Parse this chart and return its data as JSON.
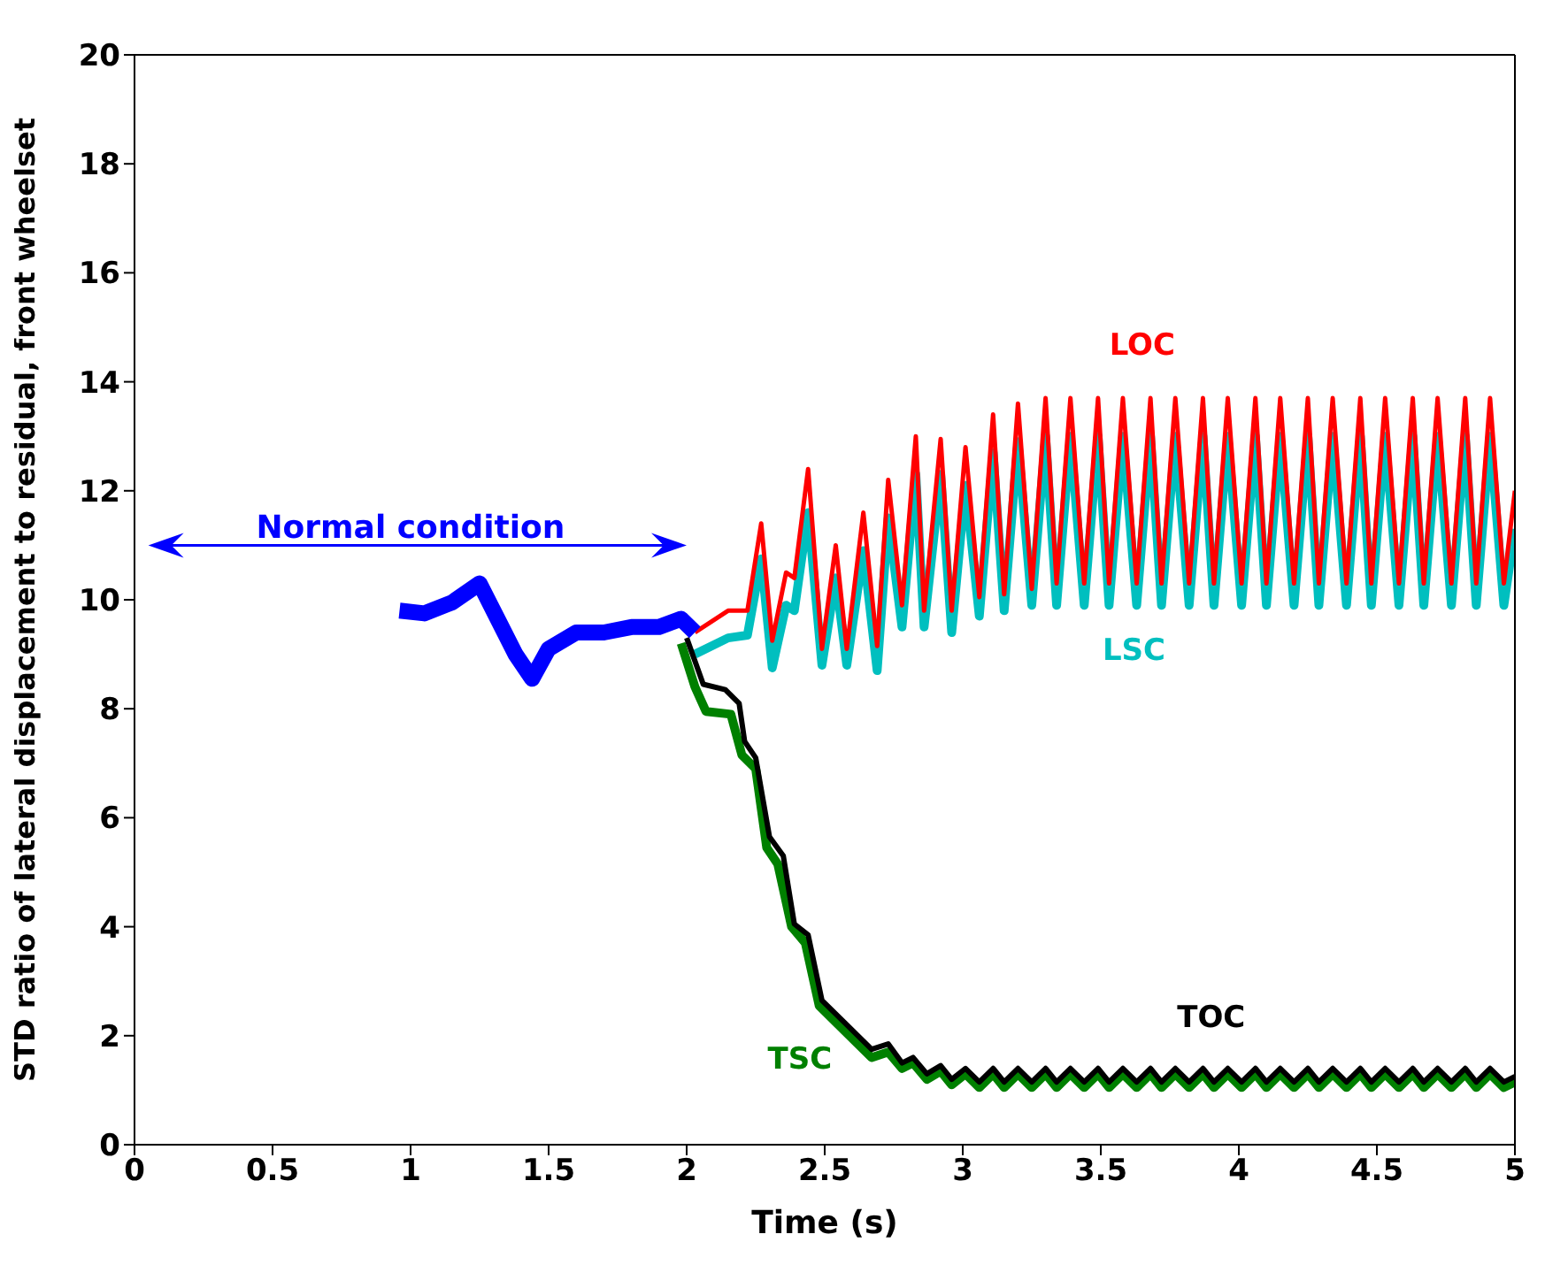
{
  "chart_data": {
    "type": "line",
    "xlabel": "Time (s)",
    "ylabel": "STD ratio of lateral displacement to residual, front wheelset",
    "xlim": [
      0,
      5
    ],
    "ylim": [
      0,
      20
    ],
    "xticks": [
      0,
      0.5,
      1,
      1.5,
      2,
      2.5,
      3,
      3.5,
      4,
      4.5,
      5
    ],
    "yticks": [
      0,
      2,
      4,
      6,
      8,
      10,
      12,
      14,
      16,
      18,
      20
    ],
    "grid": false,
    "marker": "none",
    "line_style": "solid",
    "annotations": [
      "Normal condition"
    ],
    "series": [
      {
        "name": "LSC",
        "color": "#00bfbf",
        "x": [
          2.03,
          2.15,
          2.22,
          2.27,
          2.31,
          2.36,
          2.39,
          2.44,
          2.49,
          2.54,
          2.58,
          2.64,
          2.69,
          2.73,
          2.78,
          2.83,
          2.86,
          2.92,
          2.96,
          3.01,
          3.06,
          3.11,
          3.15,
          3.2,
          3.25,
          3.3,
          3.34,
          3.39,
          3.44,
          3.49,
          3.53,
          3.58,
          3.63,
          3.68,
          3.72,
          3.77,
          3.82,
          3.87,
          3.91,
          3.96,
          4.01,
          4.06,
          4.1,
          4.15,
          4.2,
          4.25,
          4.29,
          4.34,
          4.39,
          4.44,
          4.48,
          4.53,
          4.58,
          4.63,
          4.67,
          4.72,
          4.77,
          4.82,
          4.86,
          4.91,
          4.96,
          5.0
        ],
        "values": [
          9.0,
          9.3,
          9.35,
          10.75,
          8.75,
          9.9,
          9.8,
          11.6,
          8.8,
          10.4,
          8.8,
          10.9,
          8.7,
          11.5,
          9.5,
          12.3,
          9.5,
          12.3,
          9.4,
          12.1,
          9.7,
          12.7,
          9.8,
          12.9,
          9.9,
          13.0,
          9.9,
          13.0,
          9.9,
          13.0,
          9.9,
          13.0,
          9.9,
          13.0,
          9.9,
          13.0,
          9.9,
          13.0,
          9.9,
          13.0,
          9.9,
          13.0,
          9.9,
          13.0,
          9.9,
          13.0,
          9.9,
          13.0,
          9.9,
          13.0,
          9.9,
          13.0,
          9.9,
          13.0,
          9.9,
          13.0,
          9.9,
          13.0,
          9.9,
          13.0,
          9.9,
          11.3
        ]
      },
      {
        "name": "LOC",
        "color": "#ff0000",
        "x": [
          2.03,
          2.15,
          2.22,
          2.27,
          2.31,
          2.36,
          2.39,
          2.44,
          2.49,
          2.54,
          2.58,
          2.64,
          2.69,
          2.73,
          2.78,
          2.83,
          2.86,
          2.92,
          2.96,
          3.01,
          3.06,
          3.11,
          3.15,
          3.2,
          3.25,
          3.3,
          3.34,
          3.39,
          3.44,
          3.49,
          3.53,
          3.58,
          3.63,
          3.68,
          3.72,
          3.77,
          3.82,
          3.87,
          3.91,
          3.96,
          4.01,
          4.06,
          4.1,
          4.15,
          4.2,
          4.25,
          4.29,
          4.34,
          4.39,
          4.44,
          4.48,
          4.53,
          4.58,
          4.63,
          4.67,
          4.72,
          4.77,
          4.82,
          4.86,
          4.91,
          4.96,
          5.0
        ],
        "values": [
          9.4,
          9.8,
          9.8,
          11.4,
          9.25,
          10.5,
          10.4,
          12.4,
          9.1,
          11.0,
          9.1,
          11.6,
          9.15,
          12.2,
          9.9,
          13.0,
          9.8,
          12.95,
          9.8,
          12.8,
          10.05,
          13.4,
          10.1,
          13.6,
          10.2,
          13.7,
          10.3,
          13.7,
          10.3,
          13.7,
          10.3,
          13.7,
          10.3,
          13.7,
          10.3,
          13.7,
          10.3,
          13.7,
          10.3,
          13.7,
          10.3,
          13.7,
          10.3,
          13.7,
          10.3,
          13.7,
          10.3,
          13.7,
          10.3,
          13.7,
          10.3,
          13.7,
          10.3,
          13.7,
          10.3,
          13.7,
          10.3,
          13.7,
          10.3,
          13.7,
          10.3,
          12.0
        ]
      },
      {
        "name": "TSC",
        "color": "#008000",
        "x": [
          1.98,
          2.03,
          2.07,
          2.16,
          2.2,
          2.25,
          2.29,
          2.33,
          2.38,
          2.43,
          2.48,
          2.57,
          2.67,
          2.73,
          2.78,
          2.82,
          2.87,
          2.92,
          2.96,
          3.01,
          3.06,
          3.11,
          3.15,
          3.2,
          3.25,
          3.3,
          3.34,
          3.39,
          3.44,
          3.49,
          3.53,
          3.58,
          3.63,
          3.68,
          3.72,
          3.77,
          3.82,
          3.87,
          3.91,
          3.96,
          4.01,
          4.06,
          4.1,
          4.15,
          4.2,
          4.25,
          4.29,
          4.34,
          4.39,
          4.44,
          4.48,
          4.53,
          4.58,
          4.63,
          4.67,
          4.72,
          4.77,
          4.82,
          4.86,
          4.91,
          4.96,
          5.0
        ],
        "values": [
          9.2,
          8.4,
          7.95,
          7.9,
          7.15,
          6.9,
          5.45,
          5.15,
          4.0,
          3.7,
          2.55,
          2.1,
          1.6,
          1.7,
          1.4,
          1.5,
          1.2,
          1.35,
          1.1,
          1.3,
          1.05,
          1.3,
          1.05,
          1.3,
          1.05,
          1.3,
          1.05,
          1.3,
          1.05,
          1.3,
          1.05,
          1.3,
          1.05,
          1.3,
          1.05,
          1.3,
          1.05,
          1.3,
          1.05,
          1.3,
          1.05,
          1.3,
          1.05,
          1.3,
          1.05,
          1.3,
          1.05,
          1.3,
          1.05,
          1.3,
          1.05,
          1.3,
          1.05,
          1.3,
          1.05,
          1.3,
          1.05,
          1.3,
          1.05,
          1.3,
          1.05,
          1.15
        ]
      },
      {
        "name": "TOC",
        "color": "#000000",
        "x": [
          2.0,
          2.06,
          2.14,
          2.19,
          2.21,
          2.25,
          2.3,
          2.35,
          2.39,
          2.44,
          2.49,
          2.57,
          2.67,
          2.73,
          2.78,
          2.82,
          2.87,
          2.92,
          2.96,
          3.01,
          3.06,
          3.11,
          3.15,
          3.2,
          3.25,
          3.3,
          3.34,
          3.39,
          3.44,
          3.49,
          3.53,
          3.58,
          3.63,
          3.68,
          3.72,
          3.77,
          3.82,
          3.87,
          3.91,
          3.96,
          4.01,
          4.06,
          4.1,
          4.15,
          4.2,
          4.25,
          4.29,
          4.34,
          4.39,
          4.44,
          4.48,
          4.53,
          4.58,
          4.63,
          4.67,
          4.72,
          4.77,
          4.82,
          4.86,
          4.91,
          4.96,
          5.0
        ],
        "values": [
          9.3,
          8.45,
          8.35,
          8.1,
          7.4,
          7.1,
          5.65,
          5.3,
          4.05,
          3.85,
          2.65,
          2.25,
          1.75,
          1.85,
          1.5,
          1.6,
          1.3,
          1.45,
          1.2,
          1.4,
          1.15,
          1.4,
          1.15,
          1.4,
          1.15,
          1.4,
          1.15,
          1.4,
          1.15,
          1.4,
          1.15,
          1.4,
          1.15,
          1.4,
          1.15,
          1.4,
          1.15,
          1.4,
          1.15,
          1.4,
          1.15,
          1.4,
          1.15,
          1.4,
          1.15,
          1.4,
          1.15,
          1.4,
          1.15,
          1.4,
          1.15,
          1.4,
          1.15,
          1.4,
          1.15,
          1.4,
          1.15,
          1.4,
          1.15,
          1.4,
          1.15,
          1.25
        ]
      },
      {
        "color": "#0000ff",
        "x": [
          0.96,
          1.05,
          1.15,
          1.25,
          1.32,
          1.38,
          1.44,
          1.5,
          1.6,
          1.7,
          1.8,
          1.9,
          1.98,
          2.03
        ],
        "values": [
          9.8,
          9.75,
          9.95,
          10.3,
          9.6,
          9.0,
          8.55,
          9.1,
          9.4,
          9.4,
          9.5,
          9.5,
          9.65,
          9.4
        ]
      }
    ]
  }
}
